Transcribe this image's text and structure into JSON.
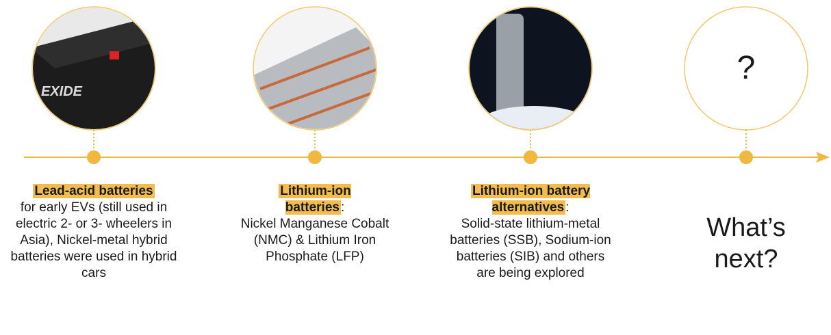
{
  "stages": [
    {
      "title": "Lead-acid batteries",
      "description": "for early EVs (still used in electric 2- or 3- wheelers in Asia), Nickel-metal hybrid batteries were used in hybrid cars"
    },
    {
      "title": "Lithium-ion batteries",
      "suffix": ":",
      "description": "Nickel Manganese Cobalt (NMC) & Lithium Iron Phosphate (LFP)"
    },
    {
      "title": "Lithium-ion battery alternatives",
      "suffix": ":",
      "description": "Solid-state lithium-metal batteries (SSB), Sodium-ion batteries (SIB) and others are being explored"
    },
    {
      "icon": "?",
      "title": "What’s next?"
    }
  ]
}
